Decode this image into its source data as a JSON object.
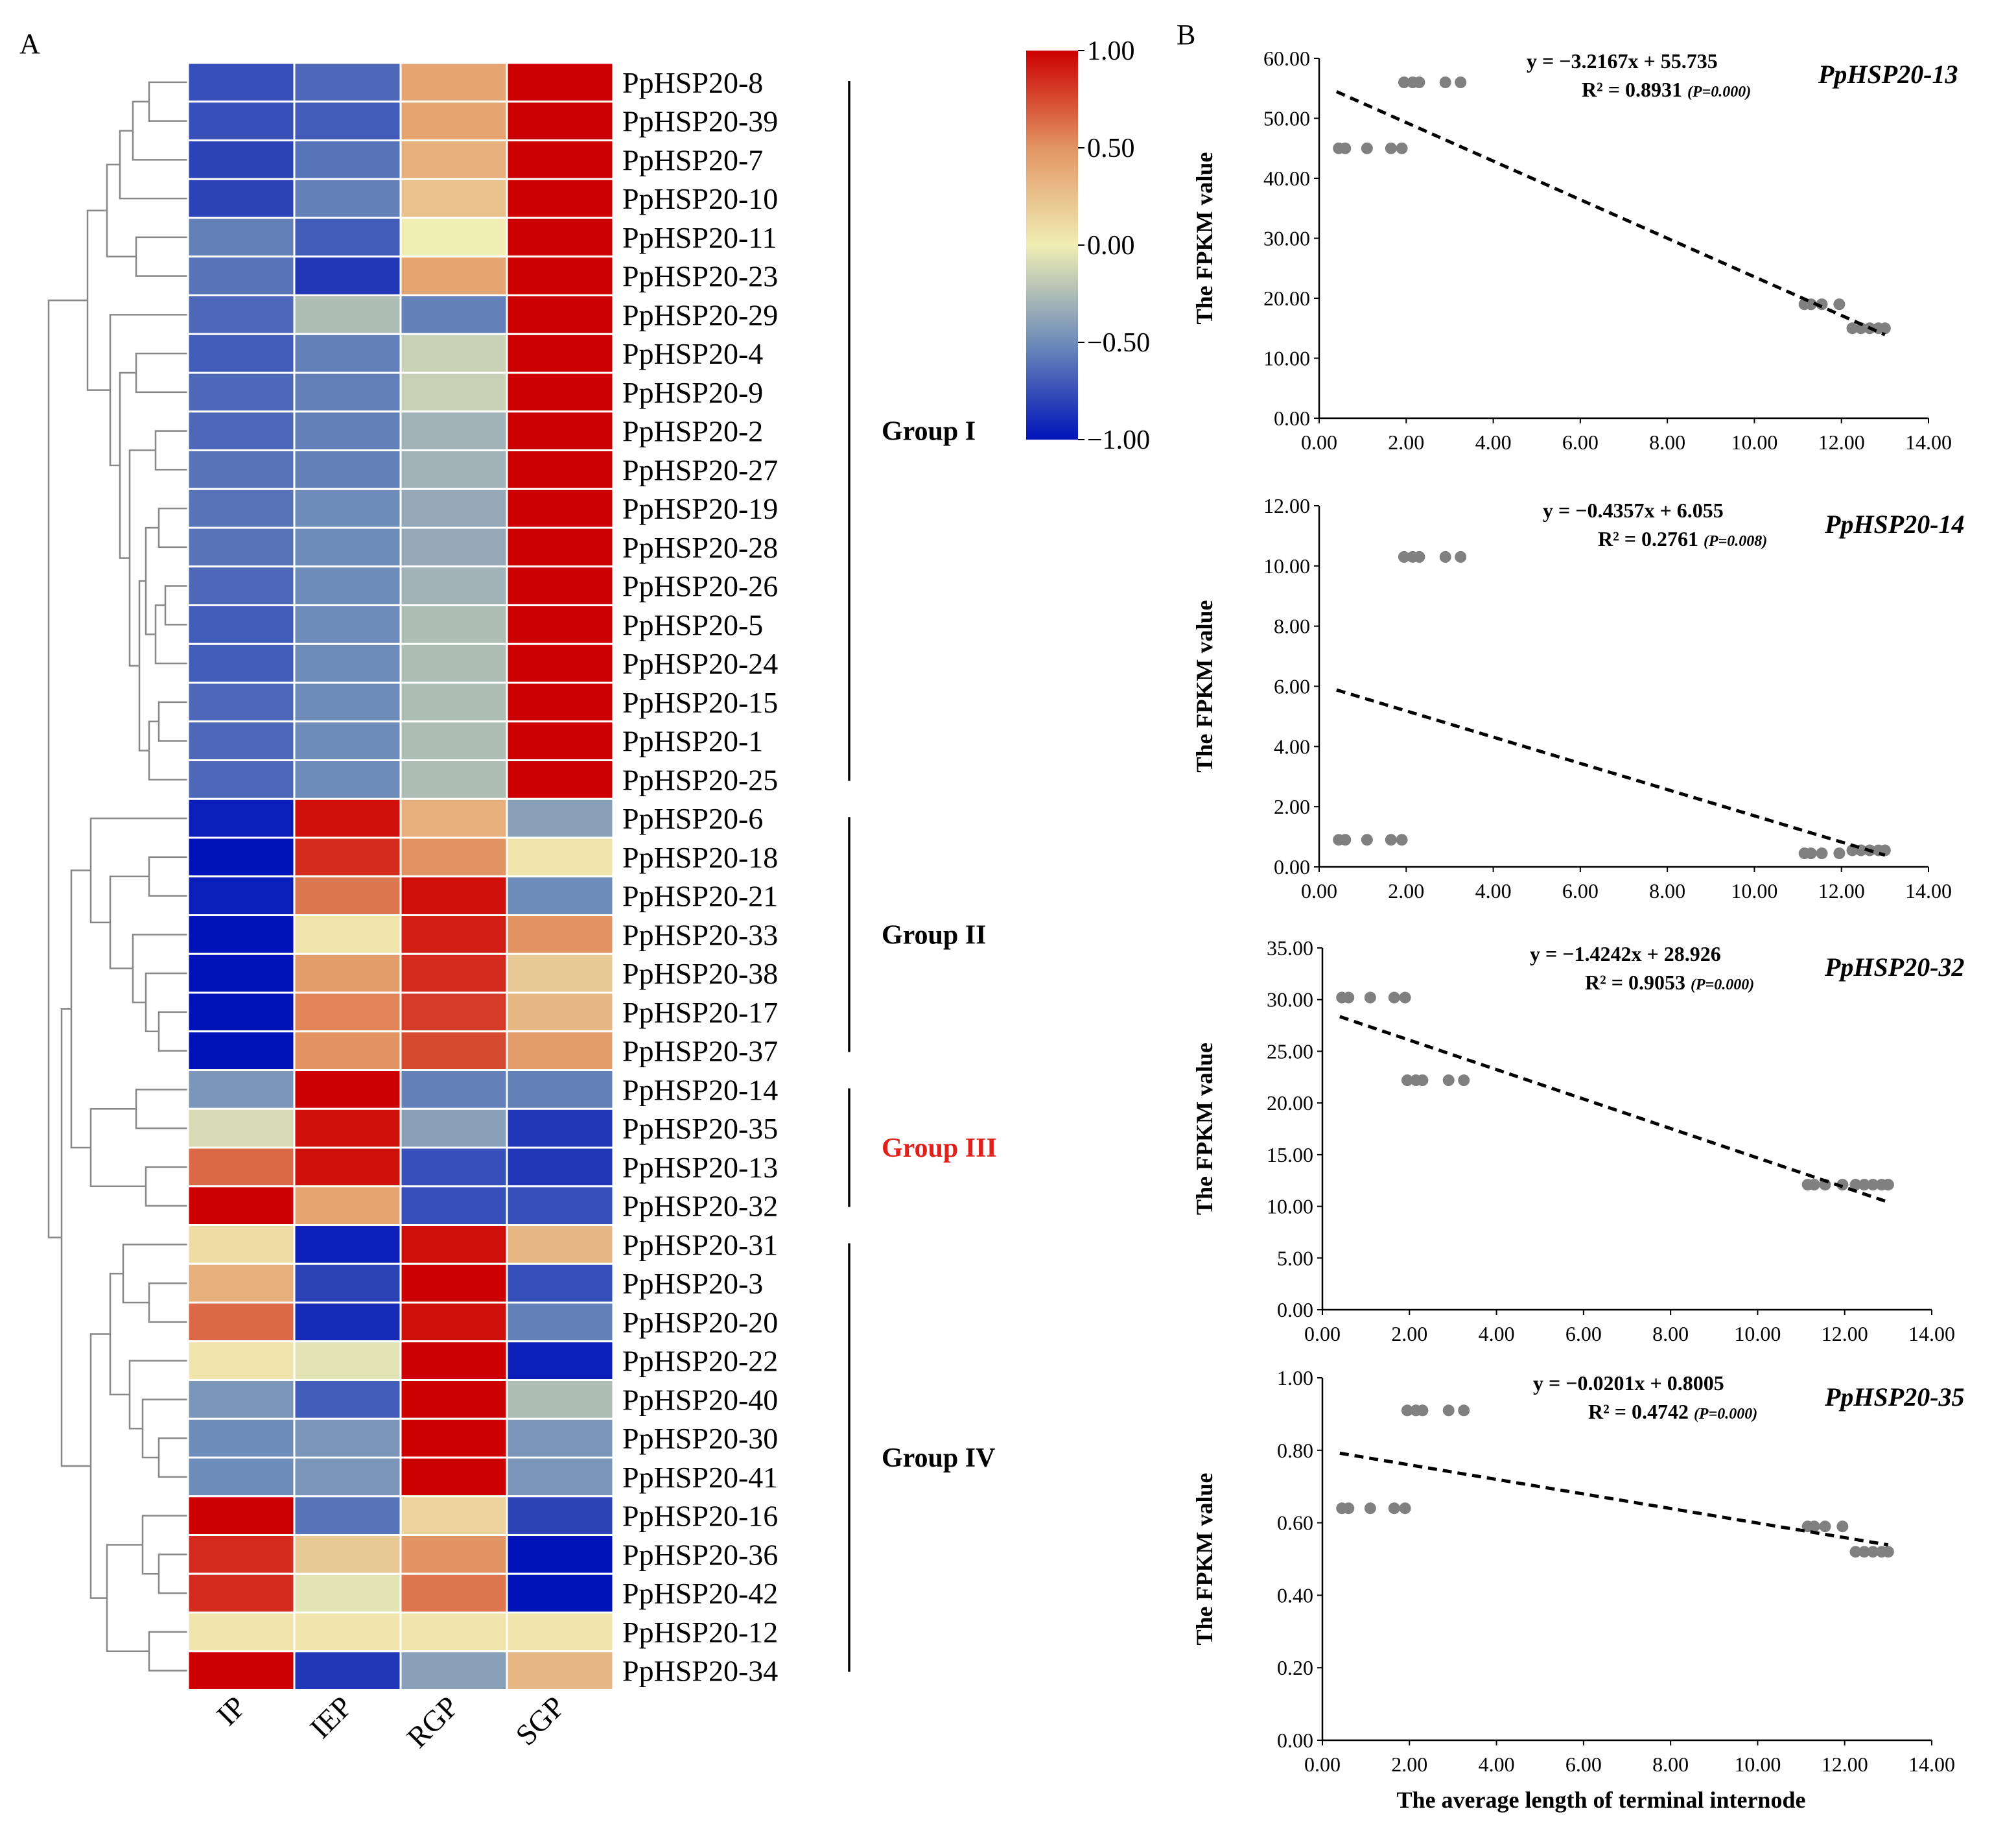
{
  "panels": {
    "A": "A",
    "B": "B"
  },
  "chart_data": [
    {
      "type": "heatmap",
      "title": "",
      "columns": [
        "IP",
        "IEP",
        "RGP",
        "SGP"
      ],
      "rows": [
        "PpHSP20-8",
        "PpHSP20-39",
        "PpHSP20-7",
        "PpHSP20-10",
        "PpHSP20-11",
        "PpHSP20-23",
        "PpHSP20-29",
        "PpHSP20-4",
        "PpHSP20-9",
        "PpHSP20-2",
        "PpHSP20-27",
        "PpHSP20-19",
        "PpHSP20-28",
        "PpHSP20-26",
        "PpHSP20-5",
        "PpHSP20-24",
        "PpHSP20-15",
        "PpHSP20-1",
        "PpHSP20-25",
        "PpHSP20-6",
        "PpHSP20-18",
        "PpHSP20-21",
        "PpHSP20-33",
        "PpHSP20-38",
        "PpHSP20-17",
        "PpHSP20-37",
        "PpHSP20-14",
        "PpHSP20-35",
        "PpHSP20-13",
        "PpHSP20-32",
        "PpHSP20-31",
        "PpHSP20-3",
        "PpHSP20-20",
        "PpHSP20-22",
        "PpHSP20-40",
        "PpHSP20-30",
        "PpHSP20-41",
        "PpHSP20-16",
        "PpHSP20-36",
        "PpHSP20-42",
        "PpHSP20-12",
        "PpHSP20-34"
      ],
      "values": [
        [
          -0.75,
          -0.65,
          0.4,
          1.0
        ],
        [
          -0.75,
          -0.7,
          0.4,
          1.0
        ],
        [
          -0.8,
          -0.6,
          0.35,
          1.0
        ],
        [
          -0.8,
          -0.55,
          0.25,
          1.0
        ],
        [
          -0.55,
          -0.7,
          0.0,
          1.0
        ],
        [
          -0.6,
          -0.85,
          0.4,
          1.0
        ],
        [
          -0.65,
          -0.25,
          -0.55,
          1.0
        ],
        [
          -0.7,
          -0.55,
          -0.15,
          1.0
        ],
        [
          -0.65,
          -0.55,
          -0.15,
          1.0
        ],
        [
          -0.65,
          -0.55,
          -0.3,
          1.0
        ],
        [
          -0.6,
          -0.55,
          -0.3,
          1.0
        ],
        [
          -0.6,
          -0.5,
          -0.35,
          1.0
        ],
        [
          -0.6,
          -0.5,
          -0.35,
          1.0
        ],
        [
          -0.65,
          -0.5,
          -0.3,
          1.0
        ],
        [
          -0.7,
          -0.5,
          -0.25,
          1.0
        ],
        [
          -0.7,
          -0.5,
          -0.25,
          1.0
        ],
        [
          -0.65,
          -0.5,
          -0.25,
          1.0
        ],
        [
          -0.65,
          -0.5,
          -0.25,
          1.0
        ],
        [
          -0.65,
          -0.5,
          -0.25,
          1.0
        ],
        [
          -0.95,
          0.95,
          0.35,
          -0.4
        ],
        [
          -1.0,
          0.85,
          0.5,
          0.05
        ],
        [
          -0.95,
          0.6,
          0.95,
          -0.5
        ],
        [
          -1.0,
          0.05,
          0.9,
          0.5
        ],
        [
          -1.0,
          0.45,
          0.85,
          0.2
        ],
        [
          -1.0,
          0.55,
          0.8,
          0.3
        ],
        [
          -1.0,
          0.5,
          0.75,
          0.45
        ],
        [
          -0.45,
          1.0,
          -0.55,
          -0.55
        ],
        [
          -0.1,
          0.95,
          -0.4,
          -0.85
        ],
        [
          0.65,
          0.95,
          -0.75,
          -0.85
        ],
        [
          1.0,
          0.4,
          -0.75,
          -0.75
        ],
        [
          0.1,
          -0.95,
          0.95,
          0.3
        ],
        [
          0.35,
          -0.8,
          1.0,
          -0.75
        ],
        [
          0.65,
          -0.9,
          0.95,
          -0.55
        ],
        [
          0.05,
          -0.05,
          1.0,
          -0.95
        ],
        [
          -0.45,
          -0.7,
          1.0,
          -0.25
        ],
        [
          -0.5,
          -0.45,
          1.0,
          -0.45
        ],
        [
          -0.5,
          -0.45,
          1.0,
          -0.45
        ],
        [
          1.0,
          -0.6,
          0.15,
          -0.8
        ],
        [
          0.85,
          0.2,
          0.5,
          -1.0
        ],
        [
          0.85,
          -0.05,
          0.6,
          -1.0
        ],
        [
          0.05,
          0.05,
          0.05,
          0.05
        ],
        [
          1.0,
          -0.85,
          -0.4,
          0.3
        ]
      ],
      "colorbar": {
        "ticks": [
          "1.00",
          "0.50",
          "0.00",
          "−0.50",
          "−1.00"
        ],
        "range": [
          -1,
          1
        ]
      },
      "groups": [
        {
          "name": "Group I",
          "rows": [
            0,
            18
          ],
          "color": "#000000"
        },
        {
          "name": "Group II",
          "rows": [
            19,
            25
          ],
          "color": "#000000"
        },
        {
          "name": "Group III",
          "rows": [
            26,
            29
          ],
          "color": "#e0201b"
        },
        {
          "name": "Group IV",
          "rows": [
            30,
            41
          ],
          "color": "#000000"
        }
      ]
    },
    {
      "type": "scatter",
      "gene": "PpHSP20-13",
      "equation": "y = −3.2167x + 55.735",
      "r2": "R² = 0.8931",
      "p": "(P=0.000)",
      "ylabel": "The FPKM value",
      "xlabel": "",
      "xlim": [
        0,
        14
      ],
      "ylim": [
        0,
        60
      ],
      "xticks": [
        "0.00",
        "2.00",
        "4.00",
        "6.00",
        "8.00",
        "10.00",
        "12.00",
        "14.00"
      ],
      "yticks": [
        "0.00",
        "10.00",
        "20.00",
        "30.00",
        "40.00",
        "50.00",
        "60.00"
      ],
      "x": [
        0.45,
        0.6,
        1.1,
        1.65,
        1.9,
        1.95,
        2.15,
        2.3,
        2.9,
        3.25,
        11.15,
        11.3,
        11.55,
        11.95,
        12.25,
        12.45,
        12.65,
        12.85,
        13.0
      ],
      "y": [
        45,
        45,
        45,
        45,
        45,
        56,
        56,
        56,
        56,
        56,
        19,
        19,
        19,
        19,
        15,
        15,
        15,
        15,
        15
      ],
      "line": [
        [
          0.4,
          54.45
        ],
        [
          13.0,
          13.92
        ]
      ]
    },
    {
      "type": "scatter",
      "gene": "PpHSP20-14",
      "equation": "y = −0.4357x + 6.055",
      "r2": "R² = 0.2761",
      "p": "(P=0.008)",
      "ylabel": "The FPKM value",
      "xlabel": "",
      "xlim": [
        0,
        14
      ],
      "ylim": [
        0,
        12
      ],
      "xticks": [
        "0.00",
        "2.00",
        "4.00",
        "6.00",
        "8.00",
        "10.00",
        "12.00",
        "14.00"
      ],
      "yticks": [
        "0.00",
        "2.00",
        "4.00",
        "6.00",
        "8.00",
        "10.00",
        "12.00"
      ],
      "x": [
        0.45,
        0.6,
        1.1,
        1.65,
        1.9,
        1.95,
        2.15,
        2.3,
        2.9,
        3.25,
        11.15,
        11.3,
        11.55,
        11.95,
        12.25,
        12.45,
        12.65,
        12.85,
        13.0
      ],
      "y": [
        0.9,
        0.9,
        0.9,
        0.9,
        0.9,
        10.3,
        10.3,
        10.3,
        10.3,
        10.3,
        0.45,
        0.45,
        0.45,
        0.45,
        0.55,
        0.55,
        0.55,
        0.55,
        0.55
      ],
      "line": [
        [
          0.4,
          5.88
        ],
        [
          13.0,
          0.39
        ]
      ]
    },
    {
      "type": "scatter",
      "gene": "PpHSP20-32",
      "equation": "y = −1.4242x + 28.926",
      "r2": "R² = 0.9053",
      "p": "(P=0.000)",
      "ylabel": "The FPKM value",
      "xlabel": "",
      "xlim": [
        0,
        14
      ],
      "ylim": [
        0,
        35
      ],
      "xticks": [
        "0.00",
        "2.00",
        "4.00",
        "6.00",
        "8.00",
        "10.00",
        "12.00",
        "14.00"
      ],
      "yticks": [
        "0.00",
        "5.00",
        "10.00",
        "15.00",
        "20.00",
        "25.00",
        "30.00",
        "35.00"
      ],
      "x": [
        0.45,
        0.6,
        1.1,
        1.65,
        1.9,
        1.95,
        2.15,
        2.3,
        2.9,
        3.25,
        11.15,
        11.3,
        11.55,
        11.95,
        12.25,
        12.45,
        12.65,
        12.85,
        13.0
      ],
      "y": [
        30.2,
        30.2,
        30.2,
        30.2,
        30.2,
        22.2,
        22.2,
        22.2,
        22.2,
        22.2,
        12.1,
        12.1,
        12.1,
        12.1,
        12.1,
        12.1,
        12.1,
        12.1,
        12.1
      ],
      "line": [
        [
          0.4,
          28.36
        ],
        [
          13.0,
          10.41
        ]
      ]
    },
    {
      "type": "scatter",
      "gene": "PpHSP20-35",
      "equation": "y = −0.0201x + 0.8005",
      "r2": "R² = 0.4742",
      "p": "(P=0.000)",
      "ylabel": "The FPKM value",
      "xlabel": "The average length of terminal internode",
      "xlim": [
        0,
        14
      ],
      "ylim": [
        0,
        1
      ],
      "xticks": [
        "0.00",
        "2.00",
        "4.00",
        "6.00",
        "8.00",
        "10.00",
        "12.00",
        "14.00"
      ],
      "yticks": [
        "0.00",
        "0.20",
        "0.40",
        "0.60",
        "0.80",
        "1.00"
      ],
      "x": [
        0.45,
        0.6,
        1.1,
        1.65,
        1.9,
        1.95,
        2.15,
        2.3,
        2.9,
        3.25,
        11.15,
        11.3,
        11.55,
        11.95,
        12.25,
        12.45,
        12.65,
        12.85,
        13.0
      ],
      "y": [
        0.64,
        0.64,
        0.64,
        0.64,
        0.64,
        0.91,
        0.91,
        0.91,
        0.91,
        0.91,
        0.59,
        0.59,
        0.59,
        0.59,
        0.52,
        0.52,
        0.52,
        0.52,
        0.52
      ],
      "line": [
        [
          0.4,
          0.792
        ],
        [
          13.0,
          0.539
        ]
      ]
    }
  ]
}
